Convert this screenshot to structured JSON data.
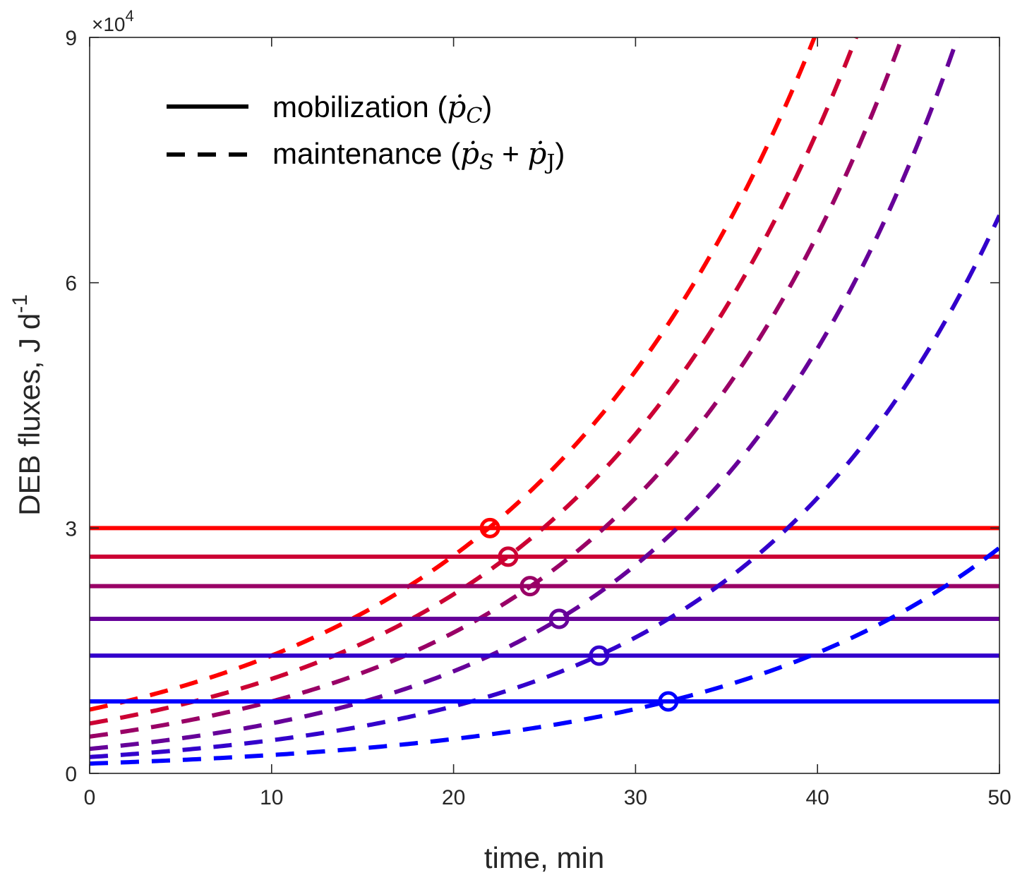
{
  "chart_data": {
    "type": "line",
    "xlabel": "time, min",
    "ylabel": "DEB fluxes, J d",
    "ylabel_sup": "-1",
    "xlim": [
      0,
      50
    ],
    "ylim": [
      0,
      90000
    ],
    "xticks": [
      0,
      10,
      20,
      30,
      40,
      50
    ],
    "xtick_labels": [
      "0",
      "10",
      "20",
      "30",
      "40",
      "50"
    ],
    "yticks": [
      0,
      30000,
      60000,
      90000
    ],
    "ytick_labels": [
      "0",
      "3",
      "6",
      "9"
    ],
    "y_multiplier": {
      "base": "×10",
      "exp": "4"
    },
    "grid": false,
    "legend": {
      "placement": "top-left",
      "entries": [
        {
          "name": "mobilization",
          "open": " (",
          "sym": "ṗ",
          "sub": "C",
          "close": ")",
          "style": "solid"
        },
        {
          "name": "maintenance",
          "open": " (",
          "sym1": "ṗ",
          "sub1": "S",
          "plus": " + ",
          "sym2": "ṗ",
          "sub2": "J",
          "close": ")",
          "style": "dashed"
        }
      ]
    },
    "series": [
      {
        "name": "mobilization 1",
        "color": "#ff0000",
        "mobilization": 30000,
        "maint_t0": 7800,
        "maint_growth": 0.0614,
        "crossing": [
          22.0,
          30000
        ]
      },
      {
        "name": "mobilization 2",
        "color": "#cc0033",
        "mobilization": 26500,
        "maint_t0": 6100,
        "maint_growth": 0.0639,
        "crossing": [
          23.0,
          26500
        ]
      },
      {
        "name": "mobilization 3",
        "color": "#990066",
        "mobilization": 22900,
        "maint_t0": 4500,
        "maint_growth": 0.0671,
        "crossing": [
          24.2,
          22900
        ]
      },
      {
        "name": "mobilization 4",
        "color": "#660099",
        "mobilization": 18900,
        "maint_t0": 3000,
        "maint_growth": 0.0713,
        "crossing": [
          25.8,
          18900
        ]
      },
      {
        "name": "mobilization 5",
        "color": "#3300cc",
        "mobilization": 14400,
        "maint_t0": 2000,
        "maint_growth": 0.0706,
        "crossing": [
          28.0,
          14400
        ]
      },
      {
        "name": "mobilization 6",
        "color": "#0000ff",
        "mobilization": 8800,
        "maint_t0": 1200,
        "maint_growth": 0.0627,
        "crossing": [
          31.8,
          8800
        ]
      }
    ]
  }
}
